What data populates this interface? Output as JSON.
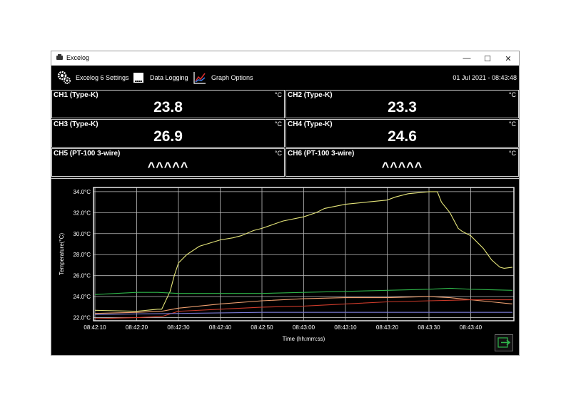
{
  "window": {
    "title": "Excelog",
    "controls": {
      "minimize": "—",
      "maximize": "☐",
      "close": "✕"
    }
  },
  "toolbar": {
    "settings_label": "Excelog 6 Settings",
    "logging_label": "Data Logging",
    "graph_options_label": "Graph Options",
    "datetime": "01 Jul 2021 - 08:43:48"
  },
  "channels": [
    {
      "label": "CH1 (Type-K)",
      "unit": "°C",
      "value": "23.8"
    },
    {
      "label": "CH2 (Type-K)",
      "unit": "°C",
      "value": "23.3"
    },
    {
      "label": "CH3 (Type-K)",
      "unit": "°C",
      "value": "26.9"
    },
    {
      "label": "CH4 (Type-K)",
      "unit": "°C",
      "value": "24.6"
    },
    {
      "label": "CH5 (PT-100 3-wire)",
      "unit": "°C",
      "value": "^^^^^"
    },
    {
      "label": "CH6 (PT-100 3-wire)",
      "unit": "°C",
      "value": "^^^^^"
    }
  ],
  "icons": {
    "settings": "gears-icon",
    "logging": "data-logger-icon",
    "graph": "line-graph-icon",
    "export": "export-arrow-icon"
  },
  "chart_data": {
    "type": "line",
    "xlabel": "Time (hh:mm:ss)",
    "ylabel": "Temperature(°C)",
    "x_ticks": [
      "08:42:10",
      "08:42:20",
      "08:42:30",
      "08:42:40",
      "08:42:50",
      "08:43:00",
      "08:43:10",
      "08:43:20",
      "08:43:30",
      "08:43:40"
    ],
    "y_ticks": [
      "22.0°C",
      "24.0°C",
      "26.0°C",
      "28.0°C",
      "30.0°C",
      "32.0°C",
      "34.0°C"
    ],
    "xlim_seconds": [
      0,
      100
    ],
    "ylim": [
      21.7,
      34.4
    ],
    "grid": true,
    "background": "#000000",
    "series": [
      {
        "color": "#e5e57a",
        "points": [
          [
            0,
            22.7
          ],
          [
            10,
            22.6
          ],
          [
            15,
            22.8
          ],
          [
            16,
            22.8
          ],
          [
            18,
            24.5
          ],
          [
            19,
            26.0
          ],
          [
            20,
            27.2
          ],
          [
            22,
            28.0
          ],
          [
            25,
            28.8
          ],
          [
            30,
            29.4
          ],
          [
            33,
            29.6
          ],
          [
            35,
            29.8
          ],
          [
            38,
            30.3
          ],
          [
            40,
            30.5
          ],
          [
            45,
            31.2
          ],
          [
            50,
            31.6
          ],
          [
            53,
            32.0
          ],
          [
            55,
            32.4
          ],
          [
            60,
            32.8
          ],
          [
            65,
            33.0
          ],
          [
            70,
            33.2
          ],
          [
            72,
            33.5
          ],
          [
            75,
            33.8
          ],
          [
            80,
            34.0
          ],
          [
            82,
            34.0
          ],
          [
            83,
            33.0
          ],
          [
            85,
            32.0
          ],
          [
            87,
            30.5
          ],
          [
            88,
            30.2
          ],
          [
            90,
            29.8
          ],
          [
            93,
            28.6
          ],
          [
            95,
            27.5
          ],
          [
            97,
            26.8
          ],
          [
            98,
            26.7
          ],
          [
            100,
            26.8
          ]
        ]
      },
      {
        "color": "#2fb54a",
        "points": [
          [
            0,
            24.2
          ],
          [
            5,
            24.3
          ],
          [
            10,
            24.4
          ],
          [
            15,
            24.4
          ],
          [
            20,
            24.3
          ],
          [
            30,
            24.3
          ],
          [
            40,
            24.3
          ],
          [
            50,
            24.4
          ],
          [
            60,
            24.5
          ],
          [
            70,
            24.6
          ],
          [
            80,
            24.7
          ],
          [
            85,
            24.8
          ],
          [
            90,
            24.7
          ],
          [
            100,
            24.6
          ]
        ]
      },
      {
        "color": "#f0a070",
        "points": [
          [
            0,
            22.4
          ],
          [
            10,
            22.5
          ],
          [
            16,
            22.6
          ],
          [
            20,
            22.9
          ],
          [
            30,
            23.3
          ],
          [
            40,
            23.6
          ],
          [
            50,
            23.8
          ],
          [
            60,
            23.9
          ],
          [
            70,
            23.9
          ],
          [
            80,
            24.0
          ],
          [
            85,
            23.9
          ],
          [
            90,
            23.7
          ],
          [
            95,
            23.5
          ],
          [
            100,
            23.3
          ]
        ]
      },
      {
        "color": "#cc3a2a",
        "points": [
          [
            0,
            21.9
          ],
          [
            10,
            22.0
          ],
          [
            16,
            22.1
          ],
          [
            20,
            22.6
          ],
          [
            30,
            22.8
          ],
          [
            40,
            23.0
          ],
          [
            50,
            23.1
          ],
          [
            60,
            23.3
          ],
          [
            70,
            23.5
          ],
          [
            80,
            23.6
          ],
          [
            90,
            23.7
          ],
          [
            100,
            23.7
          ]
        ]
      },
      {
        "color": "#7a7ad6",
        "points": [
          [
            0,
            22.3
          ],
          [
            20,
            22.4
          ],
          [
            40,
            22.5
          ],
          [
            100,
            22.5
          ]
        ]
      }
    ]
  }
}
